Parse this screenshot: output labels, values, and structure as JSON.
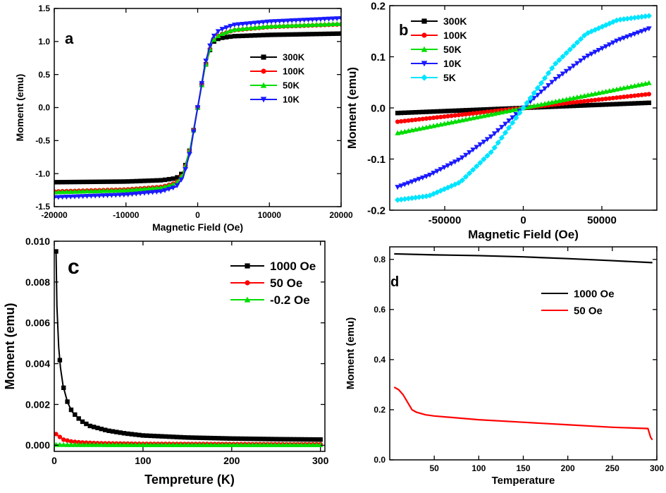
{
  "chart_data": [
    {
      "panel": "a",
      "type": "line",
      "panel_label": "a",
      "xlabel": "Magnetic Field (Oe)",
      "ylabel": "Moment (emu)",
      "xlim": [
        -20000,
        20000
      ],
      "ylim": [
        -1.5,
        1.5
      ],
      "xticks": [
        -20000,
        -10000,
        0,
        10000,
        20000
      ],
      "xtick_labels": [
        "-20000",
        "-10000",
        "0",
        "10000",
        "20000"
      ],
      "yticks": [
        -1.5,
        -1.0,
        -0.5,
        0.0,
        0.5,
        1.0,
        1.5
      ],
      "ytick_labels": [
        "-1.5",
        "-1.0",
        "-0.5",
        "0.0",
        "0.5",
        "1.0",
        "1.5"
      ],
      "legend_position": "center-right",
      "series": [
        {
          "name": "300K",
          "color": "#000000",
          "marker": "square",
          "x": [
            -20000,
            -10000,
            -5000,
            -3000,
            -2000,
            -1000,
            -500,
            0,
            500,
            1000,
            2000,
            3000,
            5000,
            10000,
            20000
          ],
          "y": [
            -1.13,
            -1.12,
            -1.1,
            -1.07,
            -0.98,
            -0.6,
            -0.3,
            0.0,
            0.3,
            0.6,
            0.98,
            1.05,
            1.08,
            1.1,
            1.12
          ]
        },
        {
          "name": "100K",
          "color": "#ff0000",
          "marker": "circle",
          "x": [
            -20000,
            -10000,
            -5000,
            -3000,
            -2000,
            -1000,
            -500,
            0,
            500,
            1000,
            2000,
            3000,
            5000,
            10000,
            20000
          ],
          "y": [
            -1.27,
            -1.24,
            -1.2,
            -1.14,
            -1.0,
            -0.6,
            -0.3,
            0.0,
            0.3,
            0.6,
            1.0,
            1.1,
            1.17,
            1.22,
            1.26
          ]
        },
        {
          "name": "50K",
          "color": "#00dd00",
          "marker": "triangle-up",
          "x": [
            -20000,
            -10000,
            -5000,
            -3000,
            -2000,
            -1000,
            -500,
            0,
            500,
            1000,
            2000,
            3000,
            5000,
            10000,
            20000
          ],
          "y": [
            -1.28,
            -1.25,
            -1.21,
            -1.15,
            -1.0,
            -0.6,
            -0.3,
            0.0,
            0.3,
            0.6,
            1.0,
            1.1,
            1.18,
            1.23,
            1.27
          ]
        },
        {
          "name": "10K",
          "color": "#1a1aff",
          "marker": "triangle-down",
          "x": [
            -20000,
            -10000,
            -5000,
            -3000,
            -2000,
            -1000,
            -500,
            0,
            500,
            1000,
            2000,
            3000,
            5000,
            10000,
            20000
          ],
          "y": [
            -1.36,
            -1.32,
            -1.27,
            -1.2,
            -1.05,
            -0.65,
            -0.32,
            0.0,
            0.32,
            0.65,
            1.05,
            1.17,
            1.25,
            1.3,
            1.35
          ]
        }
      ]
    },
    {
      "panel": "b",
      "type": "line",
      "panel_label": "b",
      "xlabel": "Magnetic Field (Oe)",
      "ylabel": "Moment (emu)",
      "xlim": [
        -85000,
        85000
      ],
      "ylim": [
        -0.2,
        0.2
      ],
      "xticks": [
        -50000,
        0,
        50000
      ],
      "xtick_labels": [
        "-50000",
        "0",
        "50000"
      ],
      "yticks": [
        -0.2,
        -0.1,
        0.0,
        0.1,
        0.2
      ],
      "ytick_labels": [
        "-0.2",
        "-0.1",
        "0.0",
        "0.1",
        "0.2"
      ],
      "legend_position": "top-left",
      "series": [
        {
          "name": "300K",
          "color": "#000000",
          "marker": "square",
          "x": [
            -80000,
            -40000,
            0,
            40000,
            80000
          ],
          "y": [
            -0.01,
            -0.005,
            0.0,
            0.005,
            0.01
          ]
        },
        {
          "name": "100K",
          "color": "#ff0000",
          "marker": "circle",
          "x": [
            -80000,
            -40000,
            0,
            40000,
            80000
          ],
          "y": [
            -0.027,
            -0.0135,
            0.0,
            0.0135,
            0.027
          ]
        },
        {
          "name": "50K",
          "color": "#00dd00",
          "marker": "triangle-up",
          "x": [
            -80000,
            -40000,
            0,
            40000,
            80000
          ],
          "y": [
            -0.049,
            -0.0245,
            0.0,
            0.0245,
            0.049
          ]
        },
        {
          "name": "10K",
          "color": "#1a1aff",
          "marker": "triangle-down",
          "x": [
            -80000,
            -60000,
            -40000,
            -20000,
            0,
            20000,
            40000,
            60000,
            80000
          ],
          "y": [
            -0.155,
            -0.132,
            -0.1,
            -0.055,
            0.0,
            0.055,
            0.1,
            0.132,
            0.155
          ]
        },
        {
          "name": "5K",
          "color": "#00e5ff",
          "marker": "diamond",
          "x": [
            -80000,
            -60000,
            -40000,
            -20000,
            0,
            20000,
            40000,
            60000,
            80000
          ],
          "y": [
            -0.18,
            -0.172,
            -0.145,
            -0.085,
            0.0,
            0.085,
            0.145,
            0.172,
            0.18
          ]
        }
      ]
    },
    {
      "panel": "c",
      "type": "line",
      "panel_label": "c",
      "xlabel": "Tempreture (K)",
      "ylabel": "Moment (emu)",
      "xlim": [
        0,
        305
      ],
      "ylim": [
        -0.0003,
        0.01
      ],
      "xticks": [
        0,
        100,
        200,
        300
      ],
      "xtick_labels": [
        "0",
        "100",
        "200",
        "300"
      ],
      "yticks": [
        0.0,
        0.002,
        0.004,
        0.006,
        0.008,
        0.01
      ],
      "ytick_labels": [
        "0.000",
        "0.002",
        "0.004",
        "0.006",
        "0.008",
        "0.010"
      ],
      "legend_position": "top-right",
      "series": [
        {
          "name": "1000 Oe",
          "color": "#000000",
          "marker": "square",
          "x": [
            2,
            3,
            5,
            7,
            10,
            15,
            20,
            30,
            40,
            60,
            80,
            100,
            150,
            200,
            250,
            300
          ],
          "y": [
            0.0095,
            0.0068,
            0.0048,
            0.0038,
            0.0029,
            0.0021,
            0.00165,
            0.0012,
            0.00095,
            0.00072,
            0.00058,
            0.00048,
            0.00038,
            0.00033,
            0.0003,
            0.00028
          ]
        },
        {
          "name": "50 Oe",
          "color": "#ff0000",
          "marker": "circle",
          "x": [
            2,
            5,
            10,
            20,
            30,
            50,
            100,
            200,
            300
          ],
          "y": [
            0.00055,
            0.00045,
            0.00028,
            0.00018,
            0.00014,
            0.0001,
            7e-05,
            6e-05,
            5e-05
          ]
        },
        {
          "name": "-0.2 Oe",
          "color": "#00dd00",
          "marker": "triangle-up",
          "x": [
            2,
            100,
            200,
            300
          ],
          "y": [
            3e-05,
            2e-05,
            2e-05,
            2e-05
          ]
        }
      ]
    },
    {
      "panel": "d",
      "type": "line",
      "panel_label": "d",
      "xlabel": "Temperature",
      "ylabel": "Moment (emu)",
      "xlim": [
        0,
        300
      ],
      "ylim": [
        0.0,
        0.85
      ],
      "xticks": [
        50,
        100,
        150,
        200,
        250,
        300
      ],
      "xtick_labels": [
        "50",
        "100",
        "150",
        "200",
        "250",
        "300"
      ],
      "yticks": [
        0.0,
        0.2,
        0.4,
        0.6,
        0.8
      ],
      "ytick_labels": [
        "0.0",
        "0.2",
        "0.4",
        "0.6",
        "0.8"
      ],
      "legend_position": "top-right",
      "series": [
        {
          "name": "1000 Oe",
          "color": "#000000",
          "marker": "none",
          "x": [
            5,
            50,
            100,
            150,
            200,
            250,
            295
          ],
          "y": [
            0.822,
            0.818,
            0.815,
            0.81,
            0.803,
            0.795,
            0.787
          ]
        },
        {
          "name": "50 Oe",
          "color": "#ff0000",
          "marker": "none",
          "x": [
            5,
            10,
            15,
            20,
            25,
            30,
            40,
            50,
            100,
            150,
            200,
            250,
            290,
            293,
            295
          ],
          "y": [
            0.29,
            0.28,
            0.26,
            0.23,
            0.2,
            0.19,
            0.18,
            0.175,
            0.16,
            0.15,
            0.14,
            0.13,
            0.125,
            0.09,
            0.08
          ]
        }
      ]
    }
  ]
}
